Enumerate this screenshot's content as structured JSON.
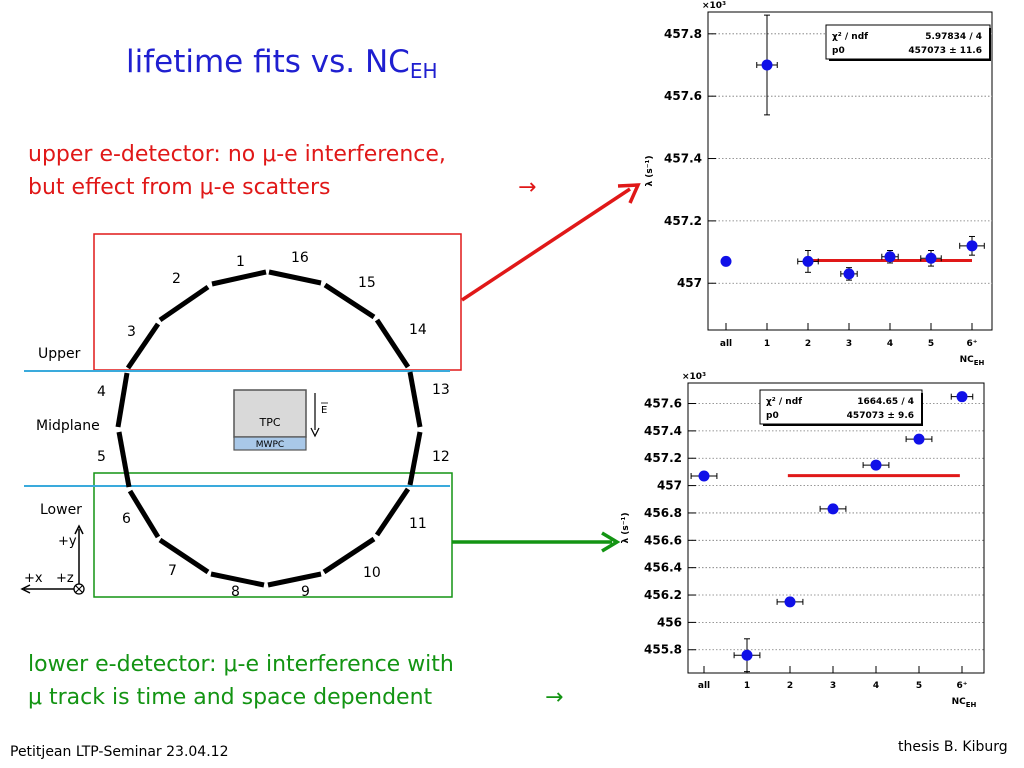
{
  "slide": {
    "title": "lifetime fits vs. NC",
    "title_sub": "EH",
    "upper_text_line1": "upper e-detector: no μ-e interference,",
    "upper_text_line2": "but effect from μ-e scatters",
    "arrow_glyph": "→",
    "lower_text_line1": "lower e-detector: μ-e interference with",
    "lower_text_line2": "μ track is time and space dependent",
    "footer_left": "Petitjean LTP-Seminar 23.04.12",
    "footer_right": "thesis B. Kiburg",
    "colors": {
      "title": "#1f1fd0",
      "upper": "#e01818",
      "lower": "#139413",
      "points": "#1010e8",
      "fit": "#e01818"
    }
  },
  "detector": {
    "segment_labels": [
      "1",
      "2",
      "3",
      "4",
      "5",
      "6",
      "7",
      "8",
      "9",
      "10",
      "11",
      "12",
      "13",
      "14",
      "15",
      "16"
    ],
    "upper_label": "Upper",
    "midplane_label": "Midplane",
    "lower_label": "Lower",
    "tpc_label": "TPC",
    "mwpc_label": "MWPC",
    "efield_label": "E",
    "axis_y_label": "+y",
    "axis_x_label": "+x",
    "axis_z_label": "+z"
  },
  "chart_data": [
    {
      "type": "scatter",
      "panel": "upper",
      "categories": [
        "all",
        "1",
        "2",
        "3",
        "4",
        "5",
        "6⁺"
      ],
      "x": [
        0,
        1,
        2,
        3,
        4,
        5,
        6
      ],
      "y": [
        457.07,
        457.7,
        457.07,
        457.03,
        457.085,
        457.08,
        457.12
      ],
      "xerr": [
        0,
        0.25,
        0.25,
        0.2,
        0.2,
        0.25,
        0.3
      ],
      "yerr": [
        0,
        0.16,
        0.035,
        0.02,
        0.02,
        0.025,
        0.03
      ],
      "fit_p0": 457.073,
      "fit_range": [
        2,
        6
      ],
      "ylabel": "λ (s⁻¹)",
      "xlabel": "NC",
      "xlabel_sub": "EH",
      "multiplier": "×10³",
      "ylim": [
        456.85,
        457.87
      ],
      "yticks": [
        457,
        457.2,
        457.4,
        457.6,
        457.8
      ],
      "ytick_labels": [
        "457",
        "457.2",
        "457.4",
        "457.6",
        "457.8"
      ],
      "stats": [
        {
          "label": "χ² / ndf",
          "value": "5.97834 / 4"
        },
        {
          "label": "p0",
          "value": "457073 ± 11.6"
        }
      ],
      "grid": true
    },
    {
      "type": "scatter",
      "panel": "lower",
      "categories": [
        "all",
        "1",
        "2",
        "3",
        "4",
        "5",
        "6⁺"
      ],
      "x": [
        0,
        1,
        2,
        3,
        4,
        5,
        6
      ],
      "y": [
        457.07,
        455.76,
        456.15,
        456.83,
        457.15,
        457.34,
        457.65
      ],
      "xerr": [
        0.3,
        0.3,
        0.3,
        0.3,
        0.3,
        0.3,
        0.25
      ],
      "yerr": [
        0,
        0.12,
        0.02,
        0.02,
        0.02,
        0.02,
        0.02
      ],
      "fit_p0": 457.073,
      "fit_range": [
        1.95,
        5.95
      ],
      "ylabel": "λ (s⁻¹)",
      "xlabel": "NC",
      "xlabel_sub": "EH",
      "multiplier": "×10³",
      "ylim": [
        455.63,
        457.75
      ],
      "yticks": [
        455.8,
        456,
        456.2,
        456.4,
        456.6,
        456.8,
        457,
        457.2,
        457.4,
        457.6
      ],
      "ytick_labels": [
        "455.8",
        "456",
        "456.2",
        "456.4",
        "456.6",
        "456.8",
        "457",
        "457.2",
        "457.4",
        "457.6"
      ],
      "stats": [
        {
          "label": "χ² / ndf",
          "value": "1664.65 / 4"
        },
        {
          "label": "p0",
          "value": "457073 ± 9.6"
        }
      ],
      "grid": true
    }
  ]
}
